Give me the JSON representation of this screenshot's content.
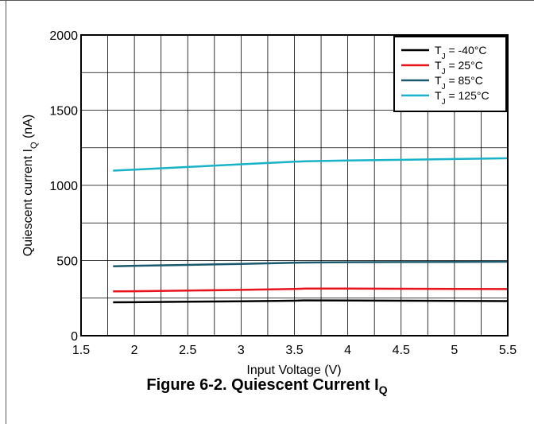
{
  "caption": {
    "text": "Figure 6-2. Quiescent Current I",
    "sub": "Q"
  },
  "chart_data": {
    "type": "line",
    "title": "",
    "xlabel": "Input Voltage (V)",
    "ylabel_main": "Quiescent current I",
    "ylabel_sub": "Q",
    "ylabel_unit": " (nA)",
    "xlim": [
      1.5,
      5.5
    ],
    "ylim": [
      0,
      2000
    ],
    "x_ticks": [
      "1.5",
      "2",
      "2.5",
      "3",
      "3.5",
      "4",
      "4.5",
      "5",
      "5.5"
    ],
    "y_ticks": [
      "0",
      "500",
      "1000",
      "1500",
      "2000"
    ],
    "grid": true,
    "legend_position": "top-right",
    "series": [
      {
        "name_prefix": "T",
        "name_sub": "J",
        "name_suffix": " = -40°C",
        "color": "#000000",
        "x": [
          1.8,
          2.0,
          2.5,
          3.0,
          3.5,
          3.6,
          4.0,
          4.5,
          5.0,
          5.5
        ],
        "y": [
          222,
          223,
          226,
          229,
          233,
          235,
          234,
          233,
          232,
          230
        ]
      },
      {
        "name_prefix": "T",
        "name_sub": "J",
        "name_suffix": " =  25°C",
        "color": "#e8141c",
        "x": [
          1.8,
          2.0,
          2.5,
          3.0,
          3.5,
          3.6,
          4.0,
          4.5,
          5.0,
          5.5
        ],
        "y": [
          295,
          296,
          300,
          305,
          311,
          313,
          313,
          312,
          311,
          310
        ]
      },
      {
        "name_prefix": "T",
        "name_sub": "J",
        "name_suffix": " =  85°C",
        "color": "#1b5a6e",
        "x": [
          1.8,
          2.0,
          2.5,
          3.0,
          3.5,
          3.6,
          4.0,
          4.5,
          5.0,
          5.5
        ],
        "y": [
          462,
          465,
          471,
          478,
          485,
          487,
          489,
          490,
          491,
          492
        ]
      },
      {
        "name_prefix": "T",
        "name_sub": "J",
        "name_suffix": " = 125°C",
        "color": "#19b3c9",
        "x": [
          1.8,
          2.0,
          2.5,
          3.0,
          3.5,
          3.6,
          4.0,
          4.5,
          5.0,
          5.5
        ],
        "y": [
          1098,
          1105,
          1122,
          1140,
          1157,
          1160,
          1165,
          1170,
          1175,
          1180
        ]
      }
    ]
  }
}
